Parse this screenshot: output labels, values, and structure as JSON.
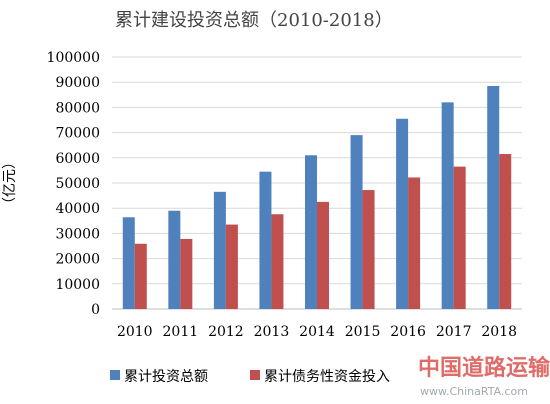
{
  "chart_data": {
    "type": "bar",
    "title": "累计建设投资总额（2010-2018）",
    "ylabel": "（亿元）",
    "categories": [
      "2010",
      "2011",
      "2012",
      "2013",
      "2014",
      "2015",
      "2016",
      "2017",
      "2018"
    ],
    "ylim": [
      0,
      100000
    ],
    "yticks": [
      0,
      10000,
      20000,
      30000,
      40000,
      50000,
      60000,
      70000,
      80000,
      90000,
      100000
    ],
    "grid": true,
    "legend_position": "bottom",
    "series": [
      {
        "name": "累计投资总额",
        "color": "#4F81BD",
        "values": [
          36400,
          39000,
          46500,
          54500,
          61000,
          69000,
          75500,
          82000,
          88500
        ]
      },
      {
        "name": "累计债务性资金投入",
        "color": "#C0504D",
        "values": [
          25900,
          27800,
          33500,
          37600,
          42500,
          47200,
          52200,
          56500,
          61500
        ]
      }
    ]
  },
  "watermark": {
    "text": "中国道路运输网",
    "url": "www.ChinaRTA.com"
  }
}
